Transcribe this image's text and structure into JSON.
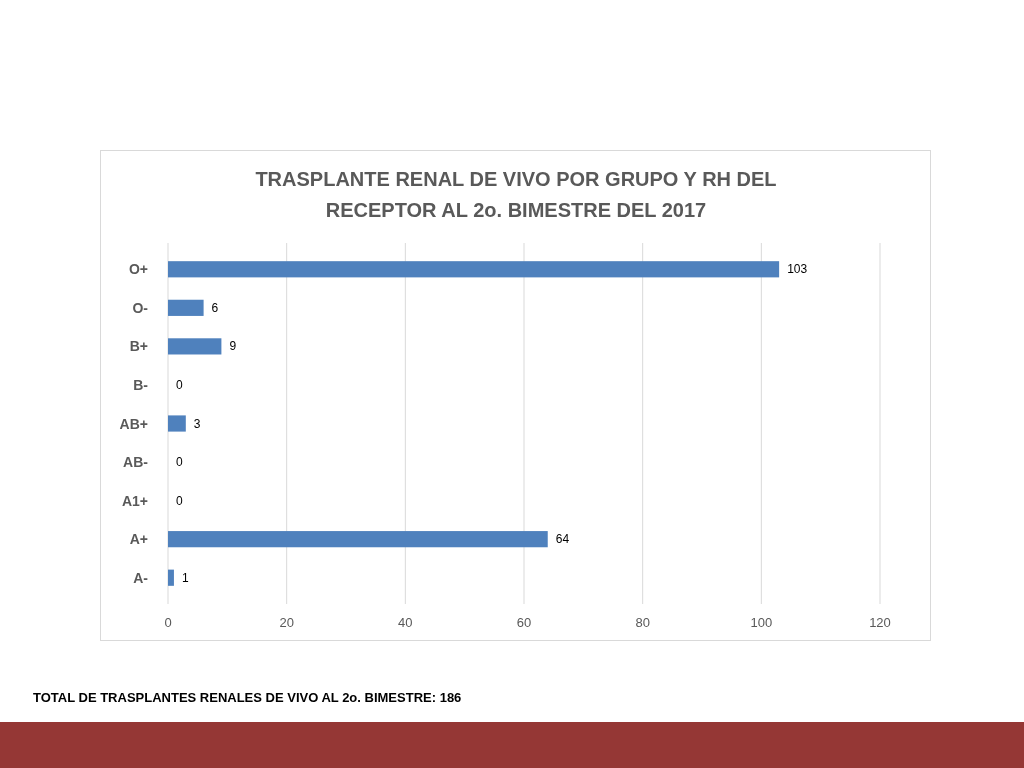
{
  "chart_data": {
    "type": "bar",
    "orientation": "horizontal",
    "title": "TRASPLANTE RENAL DE VIVO POR GRUPO Y RH DEL RECEPTOR AL 2o. BIMESTRE DEL 2017",
    "categories": [
      "O+",
      "O-",
      "B+",
      "B-",
      "AB+",
      "AB-",
      "A1+",
      "A+",
      "A-"
    ],
    "values": [
      103,
      6,
      9,
      0,
      3,
      0,
      0,
      64,
      1
    ],
    "color": "#4f81bd",
    "xlim": [
      0,
      120
    ],
    "xticks": [
      0,
      20,
      40,
      60,
      80,
      100,
      120
    ],
    "grid": "x",
    "data_labels": true,
    "annotations": [
      "TOTAL DE TRASPLANTES RENALES DE VIVO AL 2o. BIMESTRE: 186"
    ]
  }
}
